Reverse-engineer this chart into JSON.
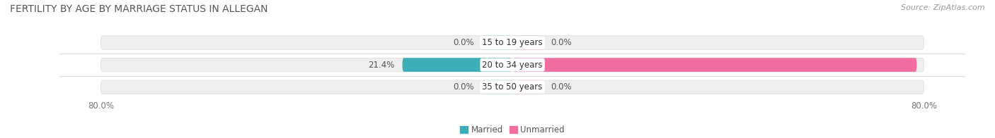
{
  "title": "FERTILITY BY AGE BY MARRIAGE STATUS IN ALLEGAN",
  "source": "Source: ZipAtlas.com",
  "rows": [
    {
      "label": "15 to 19 years",
      "married": 0.0,
      "unmarried": 0.0
    },
    {
      "label": "20 to 34 years",
      "married": 21.4,
      "unmarried": 78.6
    },
    {
      "label": "35 to 50 years",
      "married": 0.0,
      "unmarried": 0.0
    }
  ],
  "x_min": -80.0,
  "x_max": 80.0,
  "married_color": "#3DADB8",
  "married_color_light": "#8ED4DA",
  "unmarried_color": "#F06EA0",
  "unmarried_color_light": "#F5AECA",
  "bar_bg_color": "#EEEEEE",
  "bar_height": 0.62,
  "title_fontsize": 10,
  "source_fontsize": 8,
  "label_fontsize": 8.5,
  "value_fontsize": 8.5,
  "tick_fontsize": 8.5,
  "legend_fontsize": 8.5,
  "background_color": "#FFFFFF",
  "zero_bar_width": 6.0
}
